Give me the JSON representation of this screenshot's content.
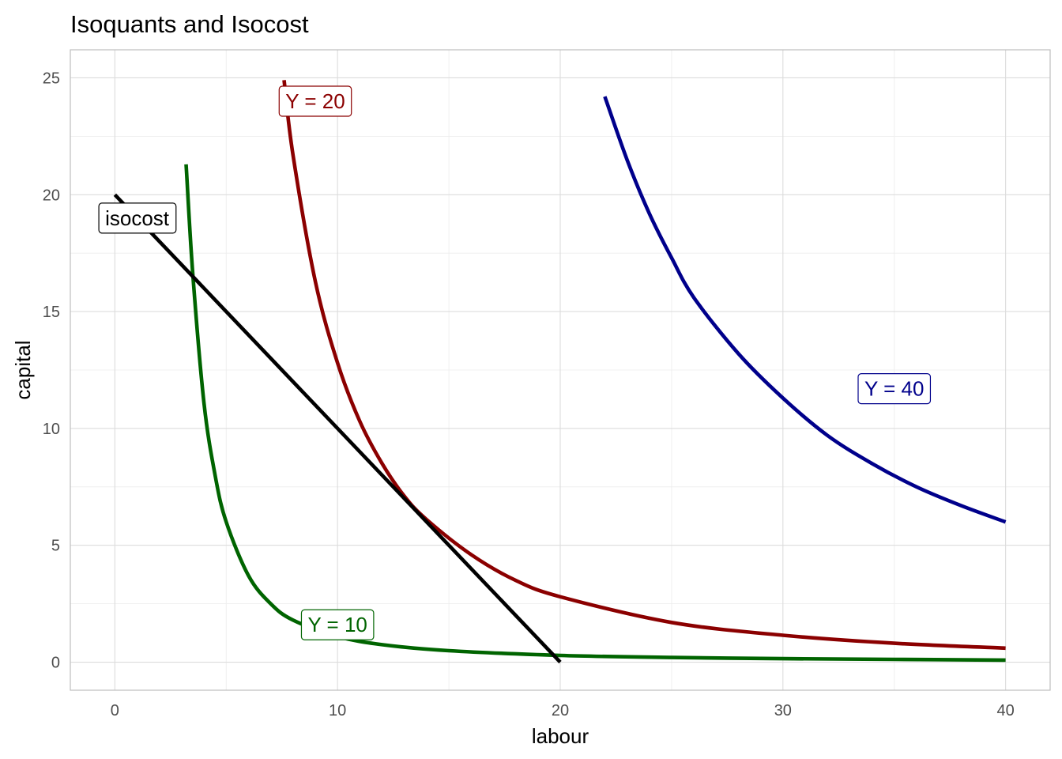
{
  "chart_data": {
    "type": "line",
    "title": "Isoquants and Isocost",
    "xlabel": "labour",
    "ylabel": "capital",
    "xlim": [
      -2,
      42
    ],
    "ylim": [
      -1.2,
      26.2
    ],
    "x_ticks": [
      0,
      10,
      20,
      30,
      40
    ],
    "y_ticks": [
      0,
      5,
      10,
      15,
      20,
      25
    ],
    "x_tick_labels": [
      "0",
      "10",
      "20",
      "30",
      "40"
    ],
    "y_tick_labels": [
      "0",
      "5",
      "10",
      "15",
      "20",
      "25"
    ],
    "grid": true,
    "legend": "none",
    "series": [
      {
        "name": "Y = 10",
        "color": "#006400",
        "x": [
          3.2,
          3.5,
          4,
          4.5,
          5,
          6,
          7,
          8,
          10,
          12,
          15,
          20,
          25,
          30,
          35,
          40
        ],
        "y": [
          21.3,
          16.6,
          11.1,
          8.0,
          6.0,
          3.7,
          2.5,
          1.8,
          1.1,
          0.75,
          0.49,
          0.29,
          0.2,
          0.15,
          0.12,
          0.09
        ]
      },
      {
        "name": "Y = 20",
        "color": "#8b0000",
        "x": [
          7.6,
          8,
          9,
          10,
          11,
          12,
          13,
          14,
          16,
          18,
          20,
          25,
          30,
          35,
          40
        ],
        "y": [
          24.9,
          21.7,
          16.3,
          12.8,
          10.3,
          8.5,
          7.1,
          6.1,
          4.6,
          3.5,
          2.8,
          1.7,
          1.15,
          0.81,
          0.6
        ]
      },
      {
        "name": "Y = 40",
        "color": "#00008b",
        "x": [
          22,
          23,
          24,
          25,
          26,
          28,
          30,
          32,
          34,
          36,
          38,
          40
        ],
        "y": [
          24.2,
          21.5,
          19.2,
          17.3,
          15.6,
          13.2,
          11.3,
          9.7,
          8.5,
          7.5,
          6.7,
          6.0
        ]
      },
      {
        "name": "isocost",
        "color": "#000000",
        "x": [
          0,
          20
        ],
        "y": [
          20,
          0
        ]
      }
    ],
    "annotations": [
      {
        "text": "Y = 20",
        "x": 9,
        "y": 24,
        "color": "#8b0000"
      },
      {
        "text": "isocost",
        "x": 1,
        "y": 19,
        "color": "#000000"
      },
      {
        "text": "Y = 40",
        "x": 35,
        "y": 11.7,
        "color": "#00008b"
      },
      {
        "text": "Y = 10",
        "x": 10,
        "y": 1.6,
        "color": "#006400"
      }
    ]
  }
}
